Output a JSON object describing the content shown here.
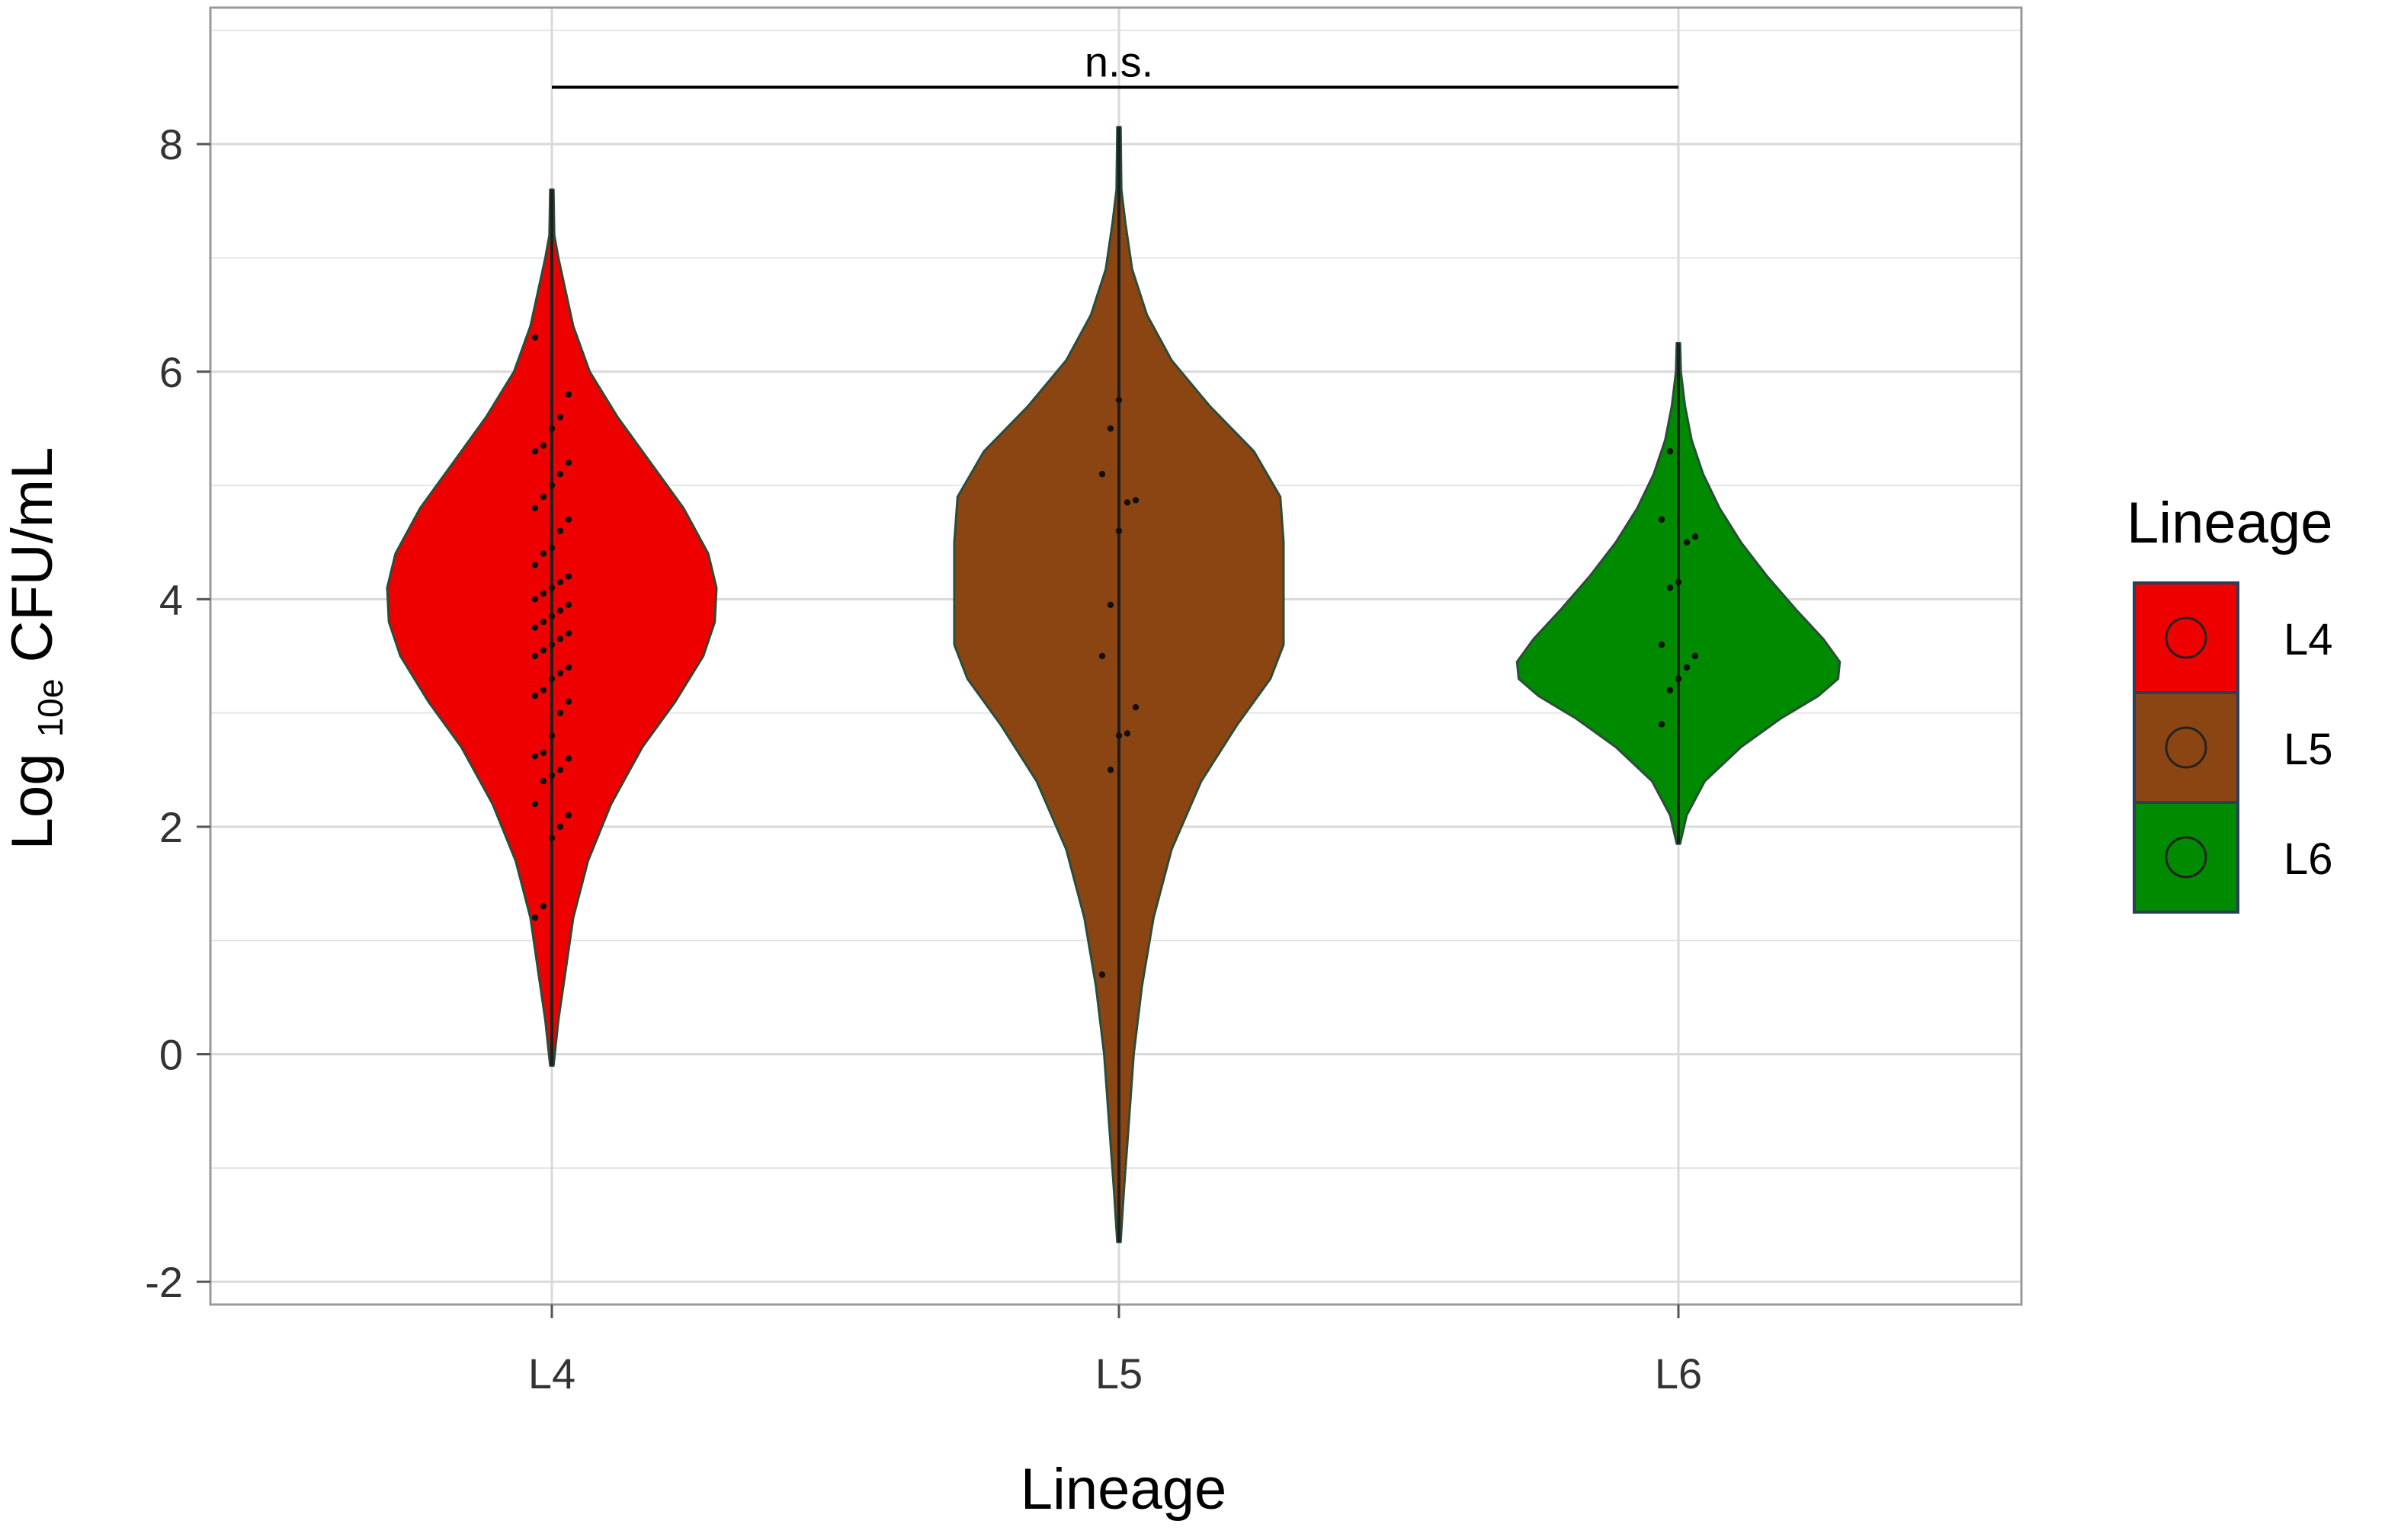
{
  "chart_data": {
    "type": "violin",
    "xlabel": "Lineage",
    "ylabel_prefix": "Log",
    "ylabel_subscript": "10e",
    "ylabel_suffix": "CFU/mL",
    "ylim": [
      -2.2,
      9.2
    ],
    "yticks": [
      -2,
      0,
      2,
      4,
      6,
      8
    ],
    "grid": true,
    "categories": [
      "L4",
      "L5",
      "L6"
    ],
    "series": [
      {
        "name": "L4",
        "color": "#ee0000",
        "outline": "#2a4d3a",
        "range": [
          -0.1,
          7.6
        ],
        "profile": [
          [
            -0.1,
            0.01
          ],
          [
            0.3,
            0.04
          ],
          [
            0.7,
            0.08
          ],
          [
            1.2,
            0.13
          ],
          [
            1.7,
            0.22
          ],
          [
            2.2,
            0.36
          ],
          [
            2.7,
            0.55
          ],
          [
            3.1,
            0.75
          ],
          [
            3.5,
            0.92
          ],
          [
            3.8,
            0.99
          ],
          [
            4.1,
            1.0
          ],
          [
            4.4,
            0.95
          ],
          [
            4.8,
            0.8
          ],
          [
            5.2,
            0.6
          ],
          [
            5.6,
            0.4
          ],
          [
            6.0,
            0.23
          ],
          [
            6.4,
            0.13
          ],
          [
            6.8,
            0.07
          ],
          [
            7.0,
            0.04
          ],
          [
            7.2,
            0.015
          ],
          [
            7.6,
            0.01
          ]
        ],
        "points": [
          1.2,
          1.3,
          1.9,
          2.0,
          2.1,
          2.2,
          2.4,
          2.45,
          2.5,
          2.6,
          2.62,
          2.65,
          2.8,
          3.0,
          3.1,
          3.15,
          3.2,
          3.3,
          3.35,
          3.4,
          3.5,
          3.55,
          3.6,
          3.65,
          3.7,
          3.75,
          3.8,
          3.85,
          3.9,
          3.95,
          4.0,
          4.05,
          4.1,
          4.15,
          4.2,
          4.3,
          4.4,
          4.45,
          4.6,
          4.7,
          4.8,
          4.9,
          5.0,
          5.1,
          5.2,
          5.3,
          5.35,
          5.5,
          5.6,
          5.8,
          6.3
        ]
      },
      {
        "name": "L5",
        "color": "#8b4513",
        "outline": "#2a4d3a",
        "range": [
          -1.65,
          8.15
        ],
        "profile": [
          [
            -1.65,
            0.01
          ],
          [
            -1.2,
            0.03
          ],
          [
            -0.6,
            0.06
          ],
          [
            0.0,
            0.09
          ],
          [
            0.6,
            0.14
          ],
          [
            1.2,
            0.21
          ],
          [
            1.8,
            0.32
          ],
          [
            2.4,
            0.5
          ],
          [
            2.9,
            0.72
          ],
          [
            3.3,
            0.92
          ],
          [
            3.6,
            1.0
          ],
          [
            4.0,
            1.0
          ],
          [
            4.5,
            1.0
          ],
          [
            4.9,
            0.98
          ],
          [
            5.3,
            0.82
          ],
          [
            5.7,
            0.55
          ],
          [
            6.1,
            0.32
          ],
          [
            6.5,
            0.17
          ],
          [
            6.9,
            0.08
          ],
          [
            7.3,
            0.04
          ],
          [
            7.6,
            0.015
          ],
          [
            8.15,
            0.01
          ]
        ],
        "points": [
          0.7,
          2.5,
          2.8,
          2.82,
          3.05,
          3.5,
          3.95,
          4.6,
          4.85,
          4.87,
          5.1,
          5.5,
          5.75
        ]
      },
      {
        "name": "L6",
        "color": "#008a00",
        "outline": "#2a4d3a",
        "range": [
          1.85,
          6.25
        ],
        "profile": [
          [
            1.85,
            0.01
          ],
          [
            2.1,
            0.05
          ],
          [
            2.4,
            0.16
          ],
          [
            2.7,
            0.38
          ],
          [
            2.95,
            0.62
          ],
          [
            3.15,
            0.85
          ],
          [
            3.3,
            0.97
          ],
          [
            3.45,
            0.98
          ],
          [
            3.65,
            0.88
          ],
          [
            3.9,
            0.72
          ],
          [
            4.2,
            0.54
          ],
          [
            4.5,
            0.38
          ],
          [
            4.8,
            0.25
          ],
          [
            5.1,
            0.15
          ],
          [
            5.4,
            0.08
          ],
          [
            5.7,
            0.04
          ],
          [
            6.0,
            0.015
          ],
          [
            6.25,
            0.01
          ]
        ],
        "points": [
          2.9,
          3.2,
          3.3,
          3.4,
          3.5,
          3.6,
          4.1,
          4.15,
          4.5,
          4.55,
          4.7,
          5.3
        ]
      }
    ],
    "annotation": {
      "text": "n.s.",
      "y": 8.5,
      "from": "L4",
      "to": "L6"
    },
    "legend": {
      "title": "Lineage",
      "placement": "right"
    }
  }
}
